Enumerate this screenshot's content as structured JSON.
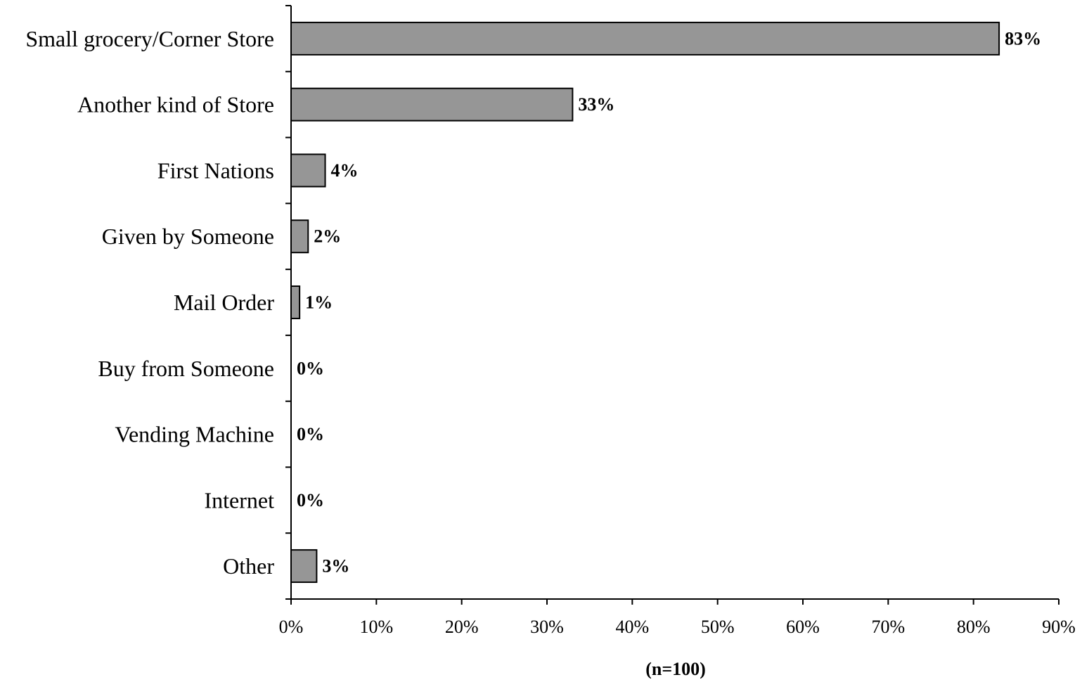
{
  "chart_data": {
    "type": "bar",
    "orientation": "horizontal",
    "categories": [
      "Small grocery/Corner Store",
      "Another kind of Store",
      "First Nations",
      "Given by Someone",
      "Mail Order",
      "Buy from Someone",
      "Vending Machine",
      "Internet",
      "Other"
    ],
    "values": [
      83,
      33,
      4,
      2,
      1,
      0,
      0,
      0,
      3
    ],
    "value_labels": [
      "83%",
      "33%",
      "4%",
      "2%",
      "1%",
      "0%",
      "0%",
      "0%",
      "3%"
    ],
    "title": "",
    "xlabel": "(n=100)",
    "ylabel": "",
    "xlim": [
      0,
      90
    ],
    "xticks": [
      0,
      10,
      20,
      30,
      40,
      50,
      60,
      70,
      80,
      90
    ],
    "xtick_labels": [
      "0%",
      "10%",
      "20%",
      "30%",
      "40%",
      "50%",
      "60%",
      "70%",
      "80%",
      "90%"
    ],
    "grid": false,
    "legend": "none",
    "colors": {
      "bar_fill": "#969696",
      "bar_stroke": "#000000",
      "axis": "#000000"
    }
  }
}
